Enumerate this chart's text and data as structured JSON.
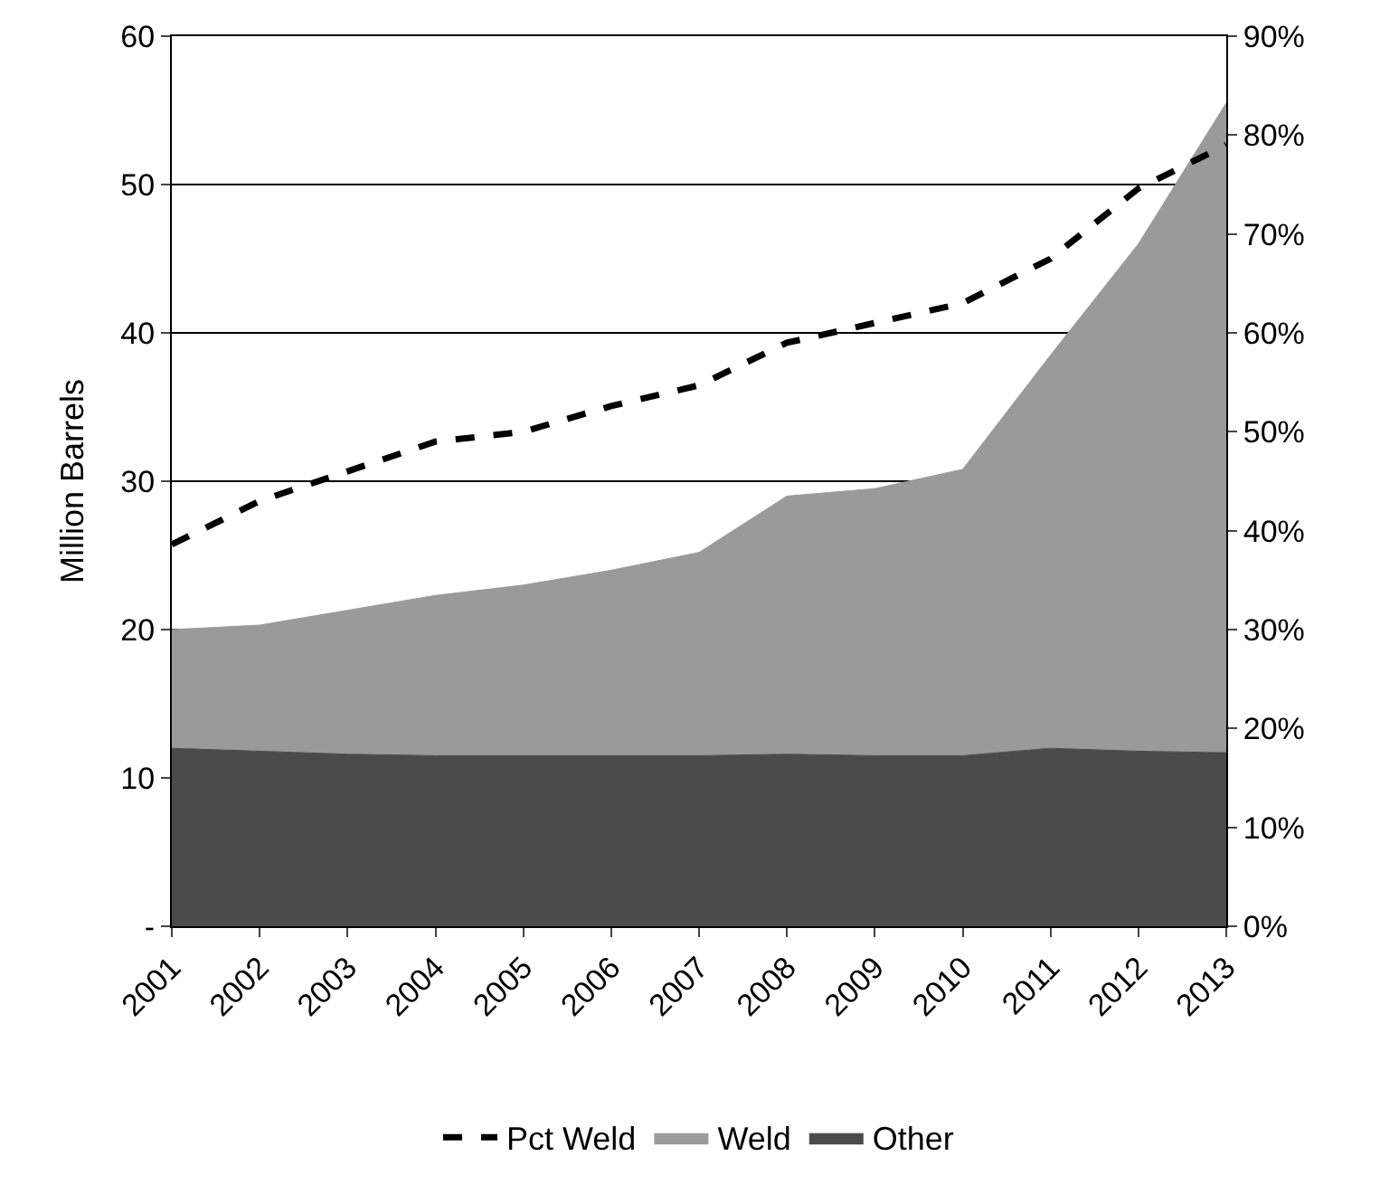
{
  "chart_data": {
    "type": "area",
    "ylabel": "Million Barrels",
    "stacked": true,
    "categories": [
      "2001",
      "2002",
      "2003",
      "2004",
      "2005",
      "2006",
      "2007",
      "2008",
      "2009",
      "2010",
      "2011",
      "2012",
      "2013"
    ],
    "series": [
      {
        "name": "Other",
        "color": "#4a4a4a",
        "values": [
          12,
          11.8,
          11.6,
          11.5,
          11.5,
          11.5,
          11.5,
          11.6,
          11.5,
          11.5,
          12,
          11.8,
          11.7
        ]
      },
      {
        "name": "Weld",
        "color": "#9a9a9a",
        "values": [
          8,
          8.5,
          9.7,
          10.8,
          11.5,
          12.5,
          13.7,
          17.4,
          18,
          19.3,
          26.5,
          34.2,
          43.8
        ]
      },
      {
        "name": "Pct Weld",
        "type": "line",
        "axis": "y2",
        "color": "#000000",
        "line_style": "dashed",
        "values": [
          38.6,
          43,
          46,
          49,
          50,
          52.6,
          54.7,
          59,
          61,
          63,
          67.5,
          74.6,
          79
        ]
      }
    ],
    "ylim": [
      0,
      60
    ],
    "yticks": [
      {
        "value": 0,
        "label": "-"
      },
      10,
      20,
      30,
      40,
      50,
      60
    ],
    "y2lim": [
      0,
      90
    ],
    "y2ticks": [
      {
        "value": 0,
        "label": "0%"
      },
      {
        "value": 10,
        "label": "10%"
      },
      {
        "value": 20,
        "label": "20%"
      },
      {
        "value": 30,
        "label": "30%"
      },
      {
        "value": 40,
        "label": "40%"
      },
      {
        "value": 50,
        "label": "50%"
      },
      {
        "value": 60,
        "label": "60%"
      },
      {
        "value": 70,
        "label": "70%"
      },
      {
        "value": 80,
        "label": "80%"
      },
      {
        "value": 90,
        "label": "90%"
      }
    ],
    "grid": "y",
    "legend": "bottom"
  }
}
